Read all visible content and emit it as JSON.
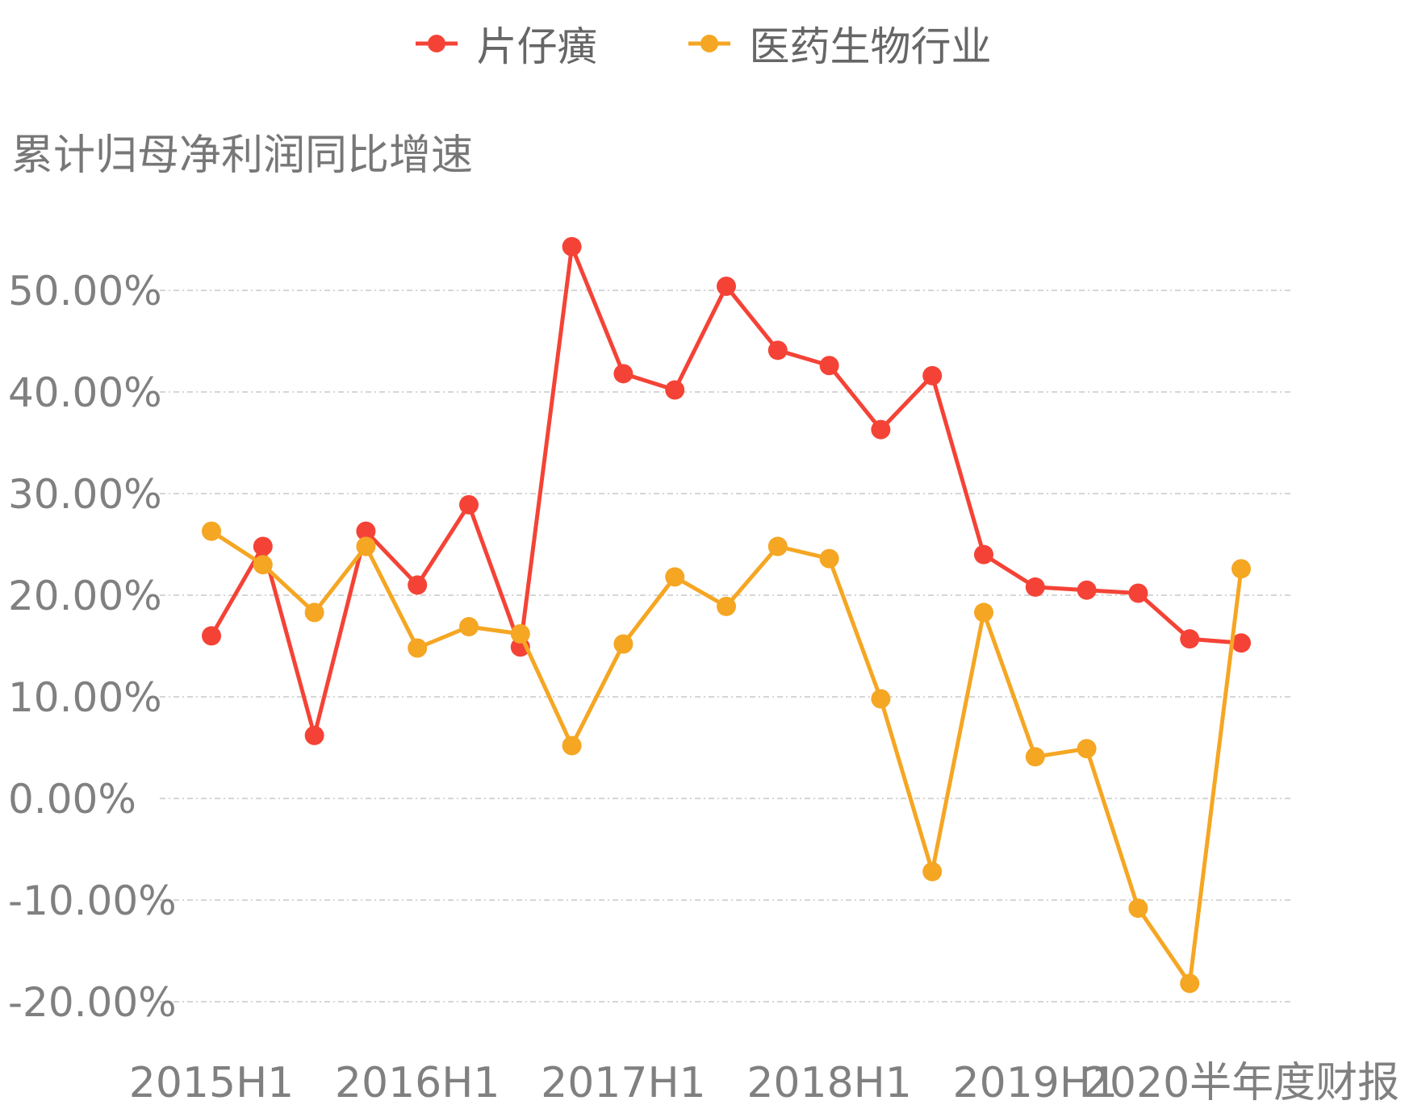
{
  "chart_data": {
    "type": "line",
    "ylabel": "累计归母净利润同比增速",
    "x_ticks": [
      "2015H1",
      "2016H1",
      "2017H1",
      "2018H1",
      "2019H1",
      "2020半年度财报"
    ],
    "y_ticks": [
      "50.00%",
      "40.00%",
      "30.00%",
      "20.00%",
      "10.00%",
      "0.00%",
      "-10.00%",
      "-20.00%"
    ],
    "ylim": [
      -20,
      50
    ],
    "grid": true,
    "legend_position": "top-center",
    "x_count": 21,
    "series": [
      {
        "name": "片仔癀",
        "color": "#f44336",
        "values": [
          16.0,
          24.8,
          6.2,
          26.3,
          21.0,
          28.9,
          14.9,
          54.3,
          41.8,
          40.2,
          50.4,
          44.1,
          42.6,
          36.3,
          41.6,
          24.0,
          20.8,
          20.5,
          20.2,
          15.7,
          15.3
        ]
      },
      {
        "name": "医药生物行业",
        "color": "#f5a623",
        "values": [
          26.3,
          23.0,
          18.3,
          24.8,
          14.8,
          16.9,
          16.2,
          5.2,
          15.2,
          21.8,
          18.9,
          24.8,
          23.6,
          9.8,
          -7.2,
          18.3,
          4.1,
          4.9,
          -10.8,
          -18.2,
          22.6
        ]
      }
    ]
  }
}
